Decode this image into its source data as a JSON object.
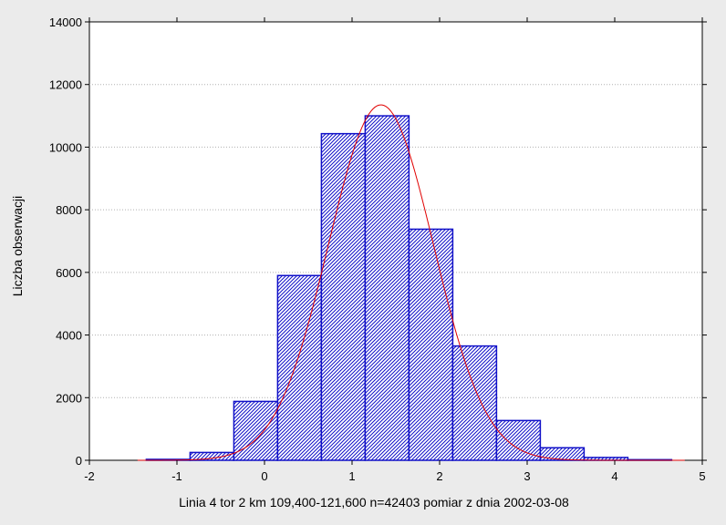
{
  "chart_data": {
    "type": "bar",
    "xlabel": "Linia 4 tor 2 km 109,400-121,600 n=42403 pomiar z dnia 2002-03-08",
    "ylabel": "Liczba obserwacji",
    "xlim": [
      -2,
      5
    ],
    "ylim": [
      0,
      14000
    ],
    "x_ticks": [
      -2,
      -1,
      0,
      1,
      2,
      3,
      4,
      5
    ],
    "y_ticks": [
      0,
      2000,
      4000,
      6000,
      8000,
      10000,
      12000,
      14000
    ],
    "grid": true,
    "bars": [
      {
        "x0": -1.35,
        "x1": -0.85,
        "value": 30
      },
      {
        "x0": -0.85,
        "x1": -0.35,
        "value": 250
      },
      {
        "x0": -0.35,
        "x1": 0.15,
        "value": 1880
      },
      {
        "x0": 0.15,
        "x1": 0.65,
        "value": 5900
      },
      {
        "x0": 0.65,
        "x1": 1.15,
        "value": 10430
      },
      {
        "x0": 1.15,
        "x1": 1.65,
        "value": 11000
      },
      {
        "x0": 1.65,
        "x1": 2.15,
        "value": 7380
      },
      {
        "x0": 2.15,
        "x1": 2.65,
        "value": 3650
      },
      {
        "x0": 2.65,
        "x1": 3.15,
        "value": 1270
      },
      {
        "x0": 3.15,
        "x1": 3.65,
        "value": 400
      },
      {
        "x0": 3.65,
        "x1": 4.15,
        "value": 90
      },
      {
        "x0": 4.15,
        "x1": 4.65,
        "value": 20
      }
    ],
    "normal_fit": {
      "mean": 1.33,
      "std": 0.6,
      "peak": 11350
    },
    "colors": {
      "bar_stroke": "#1010c8",
      "bar_hatch": "#1010c8",
      "curve": "#e00000",
      "plot_bg": "#ffffff",
      "page_bg": "#ebebeb",
      "grid": "#b0b0b0"
    }
  }
}
